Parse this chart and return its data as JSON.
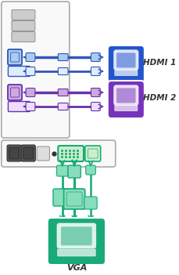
{
  "bg_color": "#ffffff",
  "hdmi1_color": "#3355bb",
  "hdmi2_color": "#6633aa",
  "vga_color": "#1aaa77",
  "hdmi1_box_color": "#2255cc",
  "hdmi2_box_color": "#7733bb",
  "vga_box_color": "#1aaa77",
  "label_hdmi1": "HDMI 1",
  "label_hdmi2": "HDMI 2",
  "label_vga": "VGA",
  "lblue": "#aaccee",
  "lpurple": "#ccaade",
  "lgreen": "#88ddbb",
  "panel_fc": "#f9f9f9",
  "panel_ec": "#aaaaaa",
  "port_dark_fc": "#cccccc",
  "port_dark_ec": "#999999"
}
